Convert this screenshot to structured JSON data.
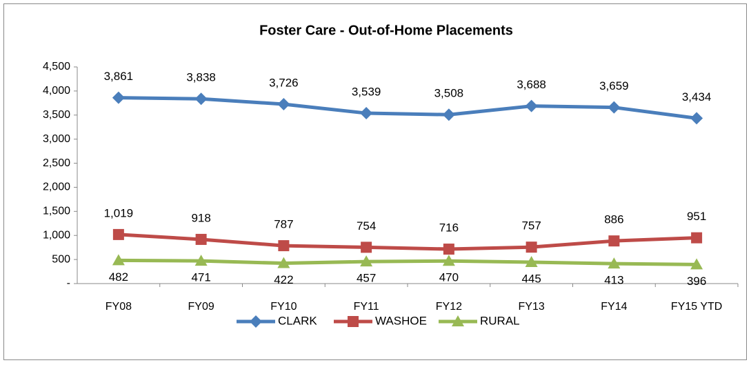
{
  "chart_data": {
    "type": "line",
    "title": "Foster Care - Out-of-Home Placements",
    "categories": [
      "FY08",
      "FY09",
      "FY10",
      "FY11",
      "FY12",
      "FY13",
      "FY14",
      "FY15 YTD"
    ],
    "series": [
      {
        "name": "CLARK",
        "color": "#4a7ebb",
        "marker": "diamond",
        "label_position": "above",
        "values": [
          3861,
          3838,
          3726,
          3539,
          3508,
          3688,
          3659,
          3434
        ],
        "value_labels": [
          "3,861",
          "3,838",
          "3,726",
          "3,539",
          "3,508",
          "3,688",
          "3,659",
          "3,434"
        ]
      },
      {
        "name": "WASHOE",
        "color": "#be4b48",
        "marker": "square",
        "label_position": "above",
        "values": [
          1019,
          918,
          787,
          754,
          716,
          757,
          886,
          951
        ],
        "value_labels": [
          "1,019",
          "918",
          "787",
          "754",
          "716",
          "757",
          "886",
          "951"
        ]
      },
      {
        "name": "RURAL",
        "color": "#98b954",
        "marker": "triangle",
        "label_position": "below",
        "values": [
          482,
          471,
          422,
          457,
          470,
          445,
          413,
          396
        ]
      }
    ],
    "ylim": [
      0,
      4500
    ],
    "yticks": [
      {
        "value": 0,
        "label": "-"
      },
      500,
      {
        "value": 1000,
        "label": "1,000"
      },
      {
        "value": 1500,
        "label": "1,500"
      },
      {
        "value": 2000,
        "label": "2,000"
      },
      {
        "value": 2500,
        "label": "2,500"
      },
      {
        "value": 3000,
        "label": "3,000"
      },
      {
        "value": 3500,
        "label": "3,500"
      },
      {
        "value": 4000,
        "label": "4,000"
      },
      {
        "value": 4500,
        "label": "4,500"
      }
    ],
    "grid": false,
    "legend": "bottom"
  }
}
